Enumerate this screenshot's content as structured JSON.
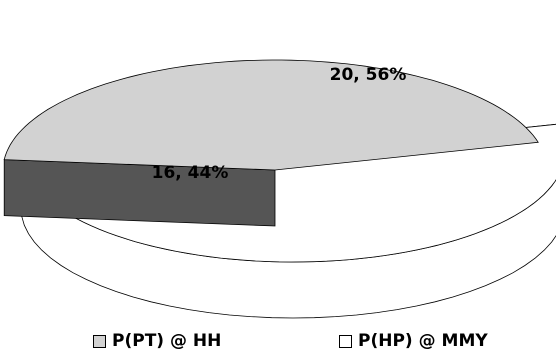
{
  "chart_data": {
    "type": "pie",
    "title": "",
    "categories": [
      "P(PT) @ HH",
      "P(HP) @ MMY"
    ],
    "values": [
      16,
      20
    ],
    "percentages": [
      44,
      56
    ],
    "data_labels": [
      "16, 44%",
      "20, 56%"
    ],
    "legend_position": "bottom",
    "exploded": true,
    "colors": [
      "#d2d2d2",
      "#ffffff"
    ]
  },
  "legend": {
    "items": [
      {
        "label": "P(PT) @ HH",
        "color": "#d2d2d2"
      },
      {
        "label": "P(HP) @ MMY",
        "color": "#ffffff"
      }
    ]
  }
}
